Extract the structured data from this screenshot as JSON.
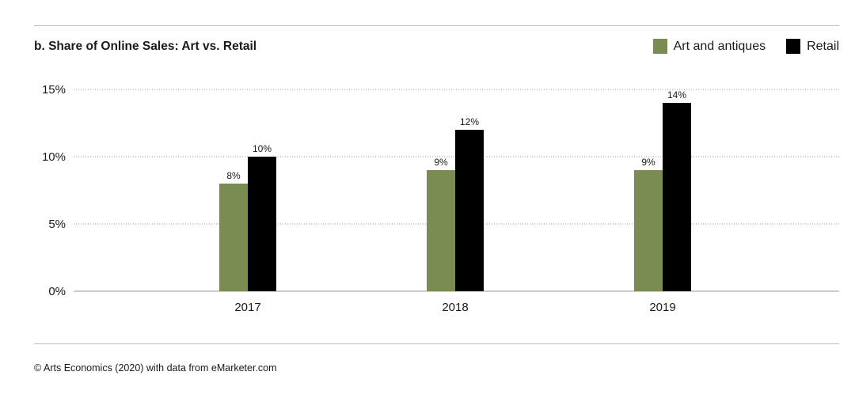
{
  "chart_data": {
    "type": "bar",
    "title": "b. Share of Online Sales: Art vs. Retail",
    "categories": [
      "2017",
      "2018",
      "2019"
    ],
    "series": [
      {
        "name": "Art and antiques",
        "values": [
          8,
          9,
          9
        ],
        "labels": [
          "8%",
          "9%",
          "9%"
        ],
        "color": "#7b8c53"
      },
      {
        "name": "Retail",
        "values": [
          10,
          12,
          14
        ],
        "labels": [
          "10%",
          "12%",
          "14%"
        ],
        "color": "#000000"
      }
    ],
    "ylim": [
      0,
      15
    ],
    "yticks": [
      {
        "value": 0,
        "label": "0%"
      },
      {
        "value": 5,
        "label": "5%"
      },
      {
        "value": 10,
        "label": "10%"
      },
      {
        "value": 15,
        "label": "15%"
      }
    ],
    "grid": "dotted horizontal",
    "legend_position": "top-right",
    "xlabel": "",
    "ylabel": ""
  },
  "source": "© Arts Economics (2020) with data from eMarketer.com"
}
